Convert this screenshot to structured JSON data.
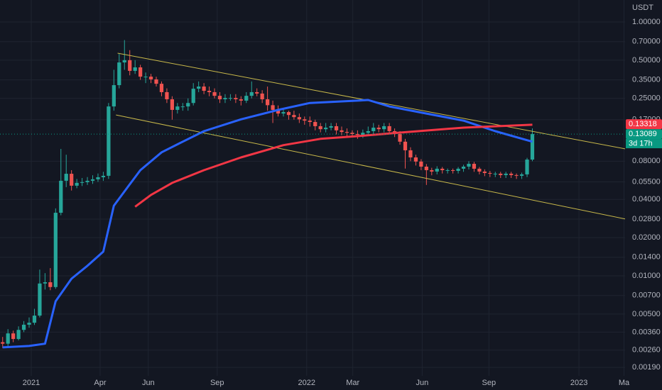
{
  "chart_data": {
    "type": "candlestick",
    "currency": "USDT",
    "up_color": "#26a69a",
    "down_color": "#ef5350",
    "open": [
      0.003,
      0.00292,
      0.00352,
      0.00318,
      0.00375,
      0.00412,
      0.00427,
      0.00486,
      0.0087,
      0.0089,
      0.00816,
      0.0314,
      0.0561,
      0.0637,
      0.0513,
      0.054,
      0.0547,
      0.0561,
      0.0576,
      0.0598,
      0.0614,
      0.216,
      0.318,
      0.48,
      0.5,
      0.412,
      0.439,
      0.371,
      0.371,
      0.353,
      0.326,
      0.28,
      0.246,
      0.203,
      0.216,
      0.216,
      0.23,
      0.298,
      0.31,
      0.287,
      0.28,
      0.262,
      0.246,
      0.252,
      0.252,
      0.246,
      0.24,
      0.262,
      0.28,
      0.273,
      0.246,
      0.221,
      0.203,
      0.19,
      0.195,
      0.185,
      0.178,
      0.171,
      0.167,
      0.163,
      0.151,
      0.143,
      0.147,
      0.151,
      0.14,
      0.136,
      0.134,
      0.131,
      0.129,
      0.134,
      0.138,
      0.147,
      0.143,
      0.151,
      0.138,
      0.131,
      0.114,
      0.0975,
      0.0857,
      0.0795,
      0.0725,
      0.068,
      0.0663,
      0.0698,
      0.068,
      0.068,
      0.0671,
      0.0698,
      0.0725,
      0.0763,
      0.0698,
      0.0663,
      0.0646,
      0.0638,
      0.0638,
      0.0622,
      0.0638,
      0.0622,
      0.0614,
      0.063,
      0.0824
    ],
    "high": [
      0.0033,
      0.0038,
      0.0037,
      0.004,
      0.0044,
      0.0047,
      0.0055,
      0.0112,
      0.0105,
      0.0115,
      0.034,
      0.1,
      0.09,
      0.068,
      0.058,
      0.059,
      0.06,
      0.062,
      0.064,
      0.066,
      0.23,
      0.42,
      0.56,
      0.72,
      0.6,
      0.5,
      0.46,
      0.4,
      0.39,
      0.37,
      0.34,
      0.3,
      0.26,
      0.23,
      0.23,
      0.25,
      0.33,
      0.34,
      0.33,
      0.31,
      0.3,
      0.28,
      0.27,
      0.27,
      0.27,
      0.26,
      0.28,
      0.34,
      0.3,
      0.29,
      0.31,
      0.24,
      0.22,
      0.21,
      0.2,
      0.2,
      0.19,
      0.18,
      0.18,
      0.17,
      0.16,
      0.16,
      0.16,
      0.16,
      0.15,
      0.145,
      0.14,
      0.14,
      0.142,
      0.15,
      0.16,
      0.155,
      0.16,
      0.16,
      0.145,
      0.138,
      0.12,
      0.103,
      0.09,
      0.083,
      0.076,
      0.071,
      0.073,
      0.072,
      0.07,
      0.07,
      0.072,
      0.075,
      0.08,
      0.079,
      0.072,
      0.069,
      0.067,
      0.066,
      0.066,
      0.066,
      0.066,
      0.064,
      0.065,
      0.085,
      0.145
    ],
    "low": [
      0.0027,
      0.0028,
      0.003,
      0.0031,
      0.0036,
      0.0039,
      0.0041,
      0.0047,
      0.0078,
      0.0077,
      0.0079,
      0.03,
      0.05,
      0.047,
      0.049,
      0.051,
      0.052,
      0.053,
      0.055,
      0.056,
      0.058,
      0.2,
      0.3,
      0.42,
      0.38,
      0.39,
      0.35,
      0.33,
      0.33,
      0.31,
      0.26,
      0.23,
      0.17,
      0.19,
      0.2,
      0.2,
      0.22,
      0.28,
      0.27,
      0.26,
      0.25,
      0.23,
      0.23,
      0.24,
      0.23,
      0.22,
      0.23,
      0.25,
      0.26,
      0.23,
      0.2,
      0.16,
      0.18,
      0.18,
      0.17,
      0.17,
      0.16,
      0.155,
      0.15,
      0.14,
      0.135,
      0.135,
      0.14,
      0.13,
      0.128,
      0.126,
      0.124,
      0.12,
      0.122,
      0.127,
      0.13,
      0.135,
      0.135,
      0.13,
      0.124,
      0.108,
      0.07,
      0.08,
      0.074,
      0.068,
      0.052,
      0.062,
      0.063,
      0.064,
      0.064,
      0.064,
      0.064,
      0.066,
      0.069,
      0.066,
      0.063,
      0.061,
      0.06,
      0.06,
      0.059,
      0.059,
      0.059,
      0.058,
      0.058,
      0.06,
      0.08
    ],
    "close": [
      0.00292,
      0.00352,
      0.00318,
      0.00375,
      0.00412,
      0.00427,
      0.00486,
      0.0087,
      0.0089,
      0.00816,
      0.0314,
      0.0561,
      0.0637,
      0.0513,
      0.054,
      0.0547,
      0.0561,
      0.0576,
      0.0598,
      0.0614,
      0.216,
      0.318,
      0.48,
      0.5,
      0.412,
      0.439,
      0.371,
      0.371,
      0.353,
      0.326,
      0.28,
      0.246,
      0.203,
      0.216,
      0.216,
      0.23,
      0.298,
      0.31,
      0.287,
      0.28,
      0.262,
      0.246,
      0.252,
      0.252,
      0.246,
      0.24,
      0.262,
      0.28,
      0.273,
      0.246,
      0.221,
      0.203,
      0.19,
      0.195,
      0.185,
      0.178,
      0.171,
      0.167,
      0.163,
      0.151,
      0.143,
      0.147,
      0.151,
      0.14,
      0.136,
      0.134,
      0.131,
      0.129,
      0.134,
      0.138,
      0.147,
      0.143,
      0.151,
      0.138,
      0.131,
      0.114,
      0.0975,
      0.0857,
      0.0795,
      0.0725,
      0.068,
      0.0663,
      0.0698,
      0.068,
      0.068,
      0.0671,
      0.0698,
      0.0725,
      0.0763,
      0.0698,
      0.0663,
      0.0646,
      0.0638,
      0.0638,
      0.0622,
      0.0638,
      0.0622,
      0.0614,
      0.063,
      0.0824,
      0.1309
    ],
    "xlim": [
      -0.5,
      117.5
    ],
    "xticks": [
      {
        "value": 5.4,
        "label": "2021"
      },
      {
        "value": 18.4,
        "label": "Apr"
      },
      {
        "value": 27.5,
        "label": "Jun"
      },
      {
        "value": 40.5,
        "label": "Sep"
      },
      {
        "value": 57.4,
        "label": "2022"
      },
      {
        "value": 66.1,
        "label": "Mar"
      },
      {
        "value": 79.2,
        "label": "Jun"
      },
      {
        "value": 91.8,
        "label": "Sep"
      },
      {
        "value": 108.8,
        "label": "2023"
      },
      {
        "value": 117.3,
        "label": "Ma"
      }
    ],
    "ylim": [
      0.00163,
      1.49
    ],
    "log_scale": true,
    "grid": true,
    "yticks": [
      {
        "value": 1,
        "label": "1.00000"
      },
      {
        "value": 0.7,
        "label": "0.70000"
      },
      {
        "value": 0.5,
        "label": "0.50000"
      },
      {
        "value": 0.35,
        "label": "0.35000"
      },
      {
        "value": 0.25,
        "label": "0.25000"
      },
      {
        "value": 0.17,
        "label": "0.17000"
      },
      {
        "value": 0.08,
        "label": "0.08000"
      },
      {
        "value": 0.055,
        "label": "0.05500"
      },
      {
        "value": 0.04,
        "label": "0.04000"
      },
      {
        "value": 0.028,
        "label": "0.02800"
      },
      {
        "value": 0.02,
        "label": "0.02000"
      },
      {
        "value": 0.014,
        "label": "0.01400"
      },
      {
        "value": 0.01,
        "label": "0.01000"
      },
      {
        "value": 0.007,
        "label": "0.00700"
      },
      {
        "value": 0.005,
        "label": "0.00500"
      },
      {
        "value": 0.0036,
        "label": "0.00360"
      },
      {
        "value": 0.0026,
        "label": "0.00260"
      },
      {
        "value": 0.0019,
        "label": "0.00190"
      }
    ],
    "moving_averages": [
      {
        "color": "#2962ff",
        "x": [
          0,
          5,
          8,
          9,
          10,
          13,
          16,
          19,
          21,
          24,
          26,
          30,
          34,
          38,
          45,
          52,
          58,
          67,
          69,
          73,
          80,
          87,
          93,
          100
        ],
        "values": [
          0.00273,
          0.0028,
          0.00292,
          0.00427,
          0.0063,
          0.0095,
          0.012,
          0.0155,
          0.0357,
          0.0526,
          0.068,
          0.094,
          0.114,
          0.138,
          0.171,
          0.203,
          0.23,
          0.24,
          0.243,
          0.216,
          0.19,
          0.167,
          0.138,
          0.114
        ]
      },
      {
        "color": "#f23645",
        "x": [
          25,
          28,
          32,
          38,
          45,
          53,
          60,
          67,
          75,
          87,
          100
        ],
        "values": [
          0.035,
          0.0434,
          0.054,
          0.068,
          0.0857,
          0.107,
          0.12,
          0.126,
          0.1345,
          0.147,
          0.155
        ]
      }
    ],
    "trend_lines": [
      {
        "color": "#c9b94a",
        "x": [
          21.7,
          117.6
        ],
        "values": [
          0.568,
          0.1
        ]
      },
      {
        "color": "#c9b94a",
        "x": [
          21.4,
          117.6
        ],
        "values": [
          0.185,
          0.028
        ]
      }
    ],
    "price_labels": [
      {
        "value": 0.13318,
        "label": "0.13318",
        "color": "#f23645"
      },
      {
        "value": 0.13089,
        "label": "0.13089",
        "color": "#089981"
      }
    ],
    "countdown": "3d 17h"
  }
}
